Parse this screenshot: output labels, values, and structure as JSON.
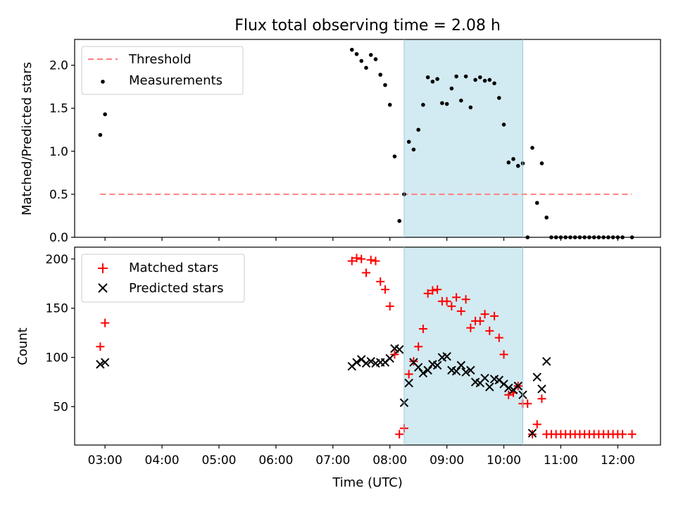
{
  "chart_data": [
    {
      "type": "scatter",
      "title": "Flux total observing time = 2.08 h",
      "ylabel": "Matched/Predicted stars",
      "xlabel": "",
      "xlim": [
        "02:28",
        "12:45"
      ],
      "ylim": [
        0,
        2.3
      ],
      "yticks": [
        "0.0",
        "0.5",
        "1.0",
        "1.5",
        "2.0"
      ],
      "legend_position": "top-left",
      "shaded_interval": [
        "08:15",
        "10:20"
      ],
      "shaded_color": "#add8e6",
      "series": [
        {
          "name": "Threshold",
          "kind": "dashed-line",
          "color": "#ff7f7f",
          "points": [
            {
              "x": "02:55",
              "y": 0.5
            },
            {
              "x": "12:15",
              "y": 0.5
            }
          ]
        },
        {
          "name": "Measurements",
          "kind": "dot",
          "color": "#000000",
          "points": [
            {
              "x": "02:55",
              "y": 1.19
            },
            {
              "x": "03:00",
              "y": 1.43
            },
            {
              "x": "07:20",
              "y": 2.18
            },
            {
              "x": "07:25",
              "y": 2.13
            },
            {
              "x": "07:30",
              "y": 2.05
            },
            {
              "x": "07:35",
              "y": 1.97
            },
            {
              "x": "07:40",
              "y": 2.12
            },
            {
              "x": "07:45",
              "y": 2.07
            },
            {
              "x": "07:50",
              "y": 1.89
            },
            {
              "x": "07:55",
              "y": 1.77
            },
            {
              "x": "08:00",
              "y": 1.54
            },
            {
              "x": "08:05",
              "y": 0.94
            },
            {
              "x": "08:10",
              "y": 0.19
            },
            {
              "x": "08:15",
              "y": 0.5
            },
            {
              "x": "08:20",
              "y": 1.11
            },
            {
              "x": "08:25",
              "y": 1.02
            },
            {
              "x": "08:30",
              "y": 1.25
            },
            {
              "x": "08:35",
              "y": 1.54
            },
            {
              "x": "08:40",
              "y": 1.86
            },
            {
              "x": "08:45",
              "y": 1.81
            },
            {
              "x": "08:50",
              "y": 1.84
            },
            {
              "x": "08:55",
              "y": 1.56
            },
            {
              "x": "09:00",
              "y": 1.55
            },
            {
              "x": "09:05",
              "y": 1.73
            },
            {
              "x": "09:10",
              "y": 1.87
            },
            {
              "x": "09:15",
              "y": 1.59
            },
            {
              "x": "09:20",
              "y": 1.87
            },
            {
              "x": "09:25",
              "y": 1.51
            },
            {
              "x": "09:30",
              "y": 1.83
            },
            {
              "x": "09:35",
              "y": 1.86
            },
            {
              "x": "09:40",
              "y": 1.82
            },
            {
              "x": "09:45",
              "y": 1.83
            },
            {
              "x": "09:50",
              "y": 1.79
            },
            {
              "x": "09:55",
              "y": 1.62
            },
            {
              "x": "10:00",
              "y": 1.31
            },
            {
              "x": "10:05",
              "y": 0.87
            },
            {
              "x": "10:10",
              "y": 0.91
            },
            {
              "x": "10:15",
              "y": 0.83
            },
            {
              "x": "10:20",
              "y": 0.86
            },
            {
              "x": "10:25",
              "y": 0.0
            },
            {
              "x": "10:30",
              "y": 1.04
            },
            {
              "x": "10:35",
              "y": 0.4
            },
            {
              "x": "10:40",
              "y": 0.86
            },
            {
              "x": "10:45",
              "y": 0.23
            },
            {
              "x": "10:50",
              "y": 0.0
            },
            {
              "x": "10:55",
              "y": 0.0
            },
            {
              "x": "11:00",
              "y": 0.0
            },
            {
              "x": "11:05",
              "y": 0.0
            },
            {
              "x": "11:10",
              "y": 0.0
            },
            {
              "x": "11:15",
              "y": 0.0
            },
            {
              "x": "11:20",
              "y": 0.0
            },
            {
              "x": "11:25",
              "y": 0.0
            },
            {
              "x": "11:30",
              "y": 0.0
            },
            {
              "x": "11:35",
              "y": 0.0
            },
            {
              "x": "11:40",
              "y": 0.0
            },
            {
              "x": "11:45",
              "y": 0.0
            },
            {
              "x": "11:50",
              "y": 0.0
            },
            {
              "x": "11:55",
              "y": 0.0
            },
            {
              "x": "12:00",
              "y": 0.0
            },
            {
              "x": "12:05",
              "y": 0.0
            },
            {
              "x": "12:15",
              "y": 0.0
            }
          ]
        }
      ]
    },
    {
      "type": "scatter",
      "title": "",
      "ylabel": "Count",
      "xlabel": "Time (UTC)",
      "xlim": [
        "02:28",
        "12:45"
      ],
      "xticks": [
        "03:00",
        "04:00",
        "05:00",
        "06:00",
        "07:00",
        "08:00",
        "09:00",
        "10:00",
        "11:00",
        "12:00"
      ],
      "ylim": [
        11,
        212
      ],
      "yticks": [
        "50",
        "100",
        "150",
        "200"
      ],
      "legend_position": "top-left",
      "shaded_interval": [
        "08:15",
        "10:20"
      ],
      "shaded_color": "#add8e6",
      "series": [
        {
          "name": "Matched stars",
          "kind": "plus",
          "color": "#ff0000",
          "points": [
            {
              "x": "02:55",
              "y": 111
            },
            {
              "x": "03:00",
              "y": 135
            },
            {
              "x": "07:20",
              "y": 198
            },
            {
              "x": "07:25",
              "y": 201
            },
            {
              "x": "07:30",
              "y": 200
            },
            {
              "x": "07:35",
              "y": 186
            },
            {
              "x": "07:40",
              "y": 199
            },
            {
              "x": "07:45",
              "y": 198
            },
            {
              "x": "07:50",
              "y": 177
            },
            {
              "x": "07:55",
              "y": 169
            },
            {
              "x": "08:00",
              "y": 152
            },
            {
              "x": "08:05",
              "y": 103
            },
            {
              "x": "08:10",
              "y": 22
            },
            {
              "x": "08:15",
              "y": 28
            },
            {
              "x": "08:20",
              "y": 83
            },
            {
              "x": "08:25",
              "y": 96
            },
            {
              "x": "08:30",
              "y": 111
            },
            {
              "x": "08:35",
              "y": 129
            },
            {
              "x": "08:40",
              "y": 165
            },
            {
              "x": "08:45",
              "y": 168
            },
            {
              "x": "08:50",
              "y": 169
            },
            {
              "x": "08:55",
              "y": 157
            },
            {
              "x": "09:00",
              "y": 157
            },
            {
              "x": "09:05",
              "y": 152
            },
            {
              "x": "09:10",
              "y": 161
            },
            {
              "x": "09:15",
              "y": 147
            },
            {
              "x": "09:20",
              "y": 159
            },
            {
              "x": "09:25",
              "y": 130
            },
            {
              "x": "09:30",
              "y": 137
            },
            {
              "x": "09:35",
              "y": 137
            },
            {
              "x": "09:40",
              "y": 144
            },
            {
              "x": "09:45",
              "y": 127
            },
            {
              "x": "09:50",
              "y": 142
            },
            {
              "x": "09:55",
              "y": 120
            },
            {
              "x": "10:00",
              "y": 103
            },
            {
              "x": "10:05",
              "y": 62
            },
            {
              "x": "10:10",
              "y": 64
            },
            {
              "x": "10:15",
              "y": 71
            },
            {
              "x": "10:20",
              "y": 53
            },
            {
              "x": "10:25",
              "y": 53
            },
            {
              "x": "10:30",
              "y": 22
            },
            {
              "x": "10:35",
              "y": 32
            },
            {
              "x": "10:40",
              "y": 58
            },
            {
              "x": "10:45",
              "y": 22
            },
            {
              "x": "10:50",
              "y": 22
            },
            {
              "x": "10:55",
              "y": 22
            },
            {
              "x": "11:00",
              "y": 22
            },
            {
              "x": "11:05",
              "y": 22
            },
            {
              "x": "11:10",
              "y": 22
            },
            {
              "x": "11:15",
              "y": 22
            },
            {
              "x": "11:20",
              "y": 22
            },
            {
              "x": "11:25",
              "y": 22
            },
            {
              "x": "11:30",
              "y": 22
            },
            {
              "x": "11:35",
              "y": 22
            },
            {
              "x": "11:40",
              "y": 22
            },
            {
              "x": "11:45",
              "y": 22
            },
            {
              "x": "11:50",
              "y": 22
            },
            {
              "x": "11:55",
              "y": 22
            },
            {
              "x": "12:00",
              "y": 22
            },
            {
              "x": "12:05",
              "y": 22
            },
            {
              "x": "12:15",
              "y": 22
            }
          ]
        },
        {
          "name": "Predicted stars",
          "kind": "x",
          "color": "#000000",
          "points": [
            {
              "x": "02:55",
              "y": 93
            },
            {
              "x": "03:00",
              "y": 95
            },
            {
              "x": "07:20",
              "y": 91
            },
            {
              "x": "07:25",
              "y": 95
            },
            {
              "x": "07:30",
              "y": 98
            },
            {
              "x": "07:35",
              "y": 94
            },
            {
              "x": "07:40",
              "y": 96
            },
            {
              "x": "07:45",
              "y": 94
            },
            {
              "x": "07:50",
              "y": 95
            },
            {
              "x": "07:55",
              "y": 95
            },
            {
              "x": "08:00",
              "y": 99
            },
            {
              "x": "08:05",
              "y": 109
            },
            {
              "x": "08:10",
              "y": 108
            },
            {
              "x": "08:15",
              "y": 54
            },
            {
              "x": "08:20",
              "y": 74
            },
            {
              "x": "08:25",
              "y": 95
            },
            {
              "x": "08:30",
              "y": 90
            },
            {
              "x": "08:35",
              "y": 84
            },
            {
              "x": "08:40",
              "y": 87
            },
            {
              "x": "08:45",
              "y": 93
            },
            {
              "x": "08:50",
              "y": 92
            },
            {
              "x": "08:55",
              "y": 100
            },
            {
              "x": "09:00",
              "y": 101
            },
            {
              "x": "09:05",
              "y": 87
            },
            {
              "x": "09:10",
              "y": 86
            },
            {
              "x": "09:15",
              "y": 92
            },
            {
              "x": "09:20",
              "y": 85
            },
            {
              "x": "09:25",
              "y": 87
            },
            {
              "x": "09:30",
              "y": 75
            },
            {
              "x": "09:35",
              "y": 74
            },
            {
              "x": "09:40",
              "y": 79
            },
            {
              "x": "09:45",
              "y": 70
            },
            {
              "x": "09:50",
              "y": 78
            },
            {
              "x": "09:55",
              "y": 77
            },
            {
              "x": "10:00",
              "y": 73
            },
            {
              "x": "10:05",
              "y": 69
            },
            {
              "x": "10:10",
              "y": 67
            },
            {
              "x": "10:15",
              "y": 71
            },
            {
              "x": "10:20",
              "y": 62
            },
            {
              "x": "10:30",
              "y": 23
            },
            {
              "x": "10:35",
              "y": 80
            },
            {
              "x": "10:40",
              "y": 68
            },
            {
              "x": "10:45",
              "y": 96
            }
          ]
        }
      ]
    }
  ]
}
